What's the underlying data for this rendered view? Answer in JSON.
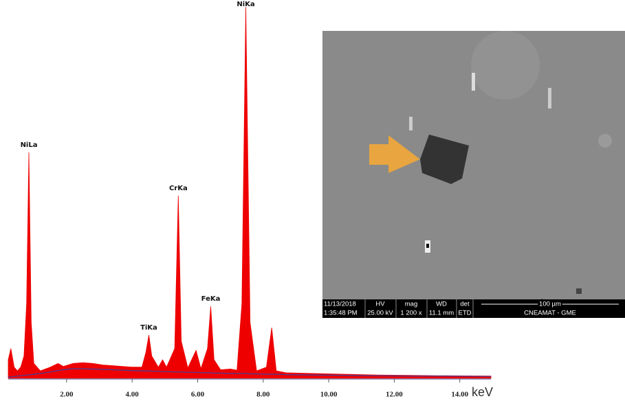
{
  "chart_data": {
    "type": "area",
    "x_unit": "keV",
    "x": [
      0.22,
      0.3,
      0.4,
      0.5,
      0.6,
      0.7,
      0.78,
      0.85,
      0.92,
      1.0,
      1.2,
      1.5,
      1.74,
      1.9,
      2.2,
      2.5,
      2.8,
      3.1,
      3.4,
      3.7,
      4.0,
      4.3,
      4.42,
      4.51,
      4.6,
      4.8,
      4.93,
      5.05,
      5.3,
      5.41,
      5.5,
      5.7,
      5.95,
      6.1,
      6.3,
      6.4,
      6.5,
      6.7,
      7.0,
      7.2,
      7.35,
      7.47,
      7.6,
      7.8,
      8.1,
      8.26,
      8.4,
      8.7,
      9.5,
      10.5,
      11.5,
      12.5,
      13.5,
      14.95
    ],
    "series": [
      {
        "color": "#ee0000",
        "values": [
          5,
          8,
          3,
          2,
          3,
          6,
          20,
          60.6,
          15,
          4,
          2,
          3,
          4,
          3.2,
          4,
          4.2,
          4,
          3.6,
          3.4,
          3.2,
          3,
          3,
          7,
          11.6,
          6,
          3,
          5,
          3,
          8,
          49,
          10,
          2.8,
          7.5,
          2.6,
          8,
          19.3,
          5,
          2.3,
          2.5,
          2.2,
          20,
          99.6,
          15,
          2,
          3,
          13.6,
          2,
          1.5,
          1.3,
          1.1,
          0.9,
          0.8,
          0.7,
          0.6
        ]
      },
      {
        "color": "#4040a0",
        "values": [
          0.3,
          0.4,
          0.5,
          0.6,
          0.7,
          0.8,
          0.9,
          0.95,
          1.0,
          1.1,
          1.3,
          1.7,
          2.1,
          2.3,
          2.6,
          2.6,
          2.5,
          2.4,
          2.3,
          2.2,
          2.1,
          2.0,
          2.0,
          2.0,
          1.9,
          1.9,
          1.8,
          1.8,
          1.7,
          1.7,
          1.7,
          1.6,
          1.6,
          1.5,
          1.5,
          1.5,
          1.4,
          1.4,
          1.3,
          1.3,
          1.3,
          1.3,
          1.2,
          1.2,
          1.1,
          1.1,
          1.1,
          1.0,
          0.9,
          0.8,
          0.7,
          0.6,
          0.6,
          0.5
        ]
      }
    ],
    "annotations": [
      {
        "text": "NiLa",
        "x": 0.85,
        "y": 60.6
      },
      {
        "text": "TiKa",
        "x": 4.51,
        "y": 11.6
      },
      {
        "text": "CrKa",
        "x": 5.41,
        "y": 49
      },
      {
        "text": "FeKa",
        "x": 6.4,
        "y": 19.3
      },
      {
        "text": "NiKa",
        "x": 7.47,
        "y": 99.6
      }
    ],
    "xlim": [
      0.22,
      14.95
    ],
    "ylim": [
      0,
      100
    ],
    "xticks": [
      {
        "value": 2,
        "label": "2.00"
      },
      {
        "value": 4,
        "label": "4.00"
      },
      {
        "value": 6,
        "label": "6.00"
      },
      {
        "value": 8,
        "label": "8.00"
      },
      {
        "value": 10,
        "label": "10.00"
      },
      {
        "value": 12,
        "label": "12.00"
      },
      {
        "value": 14,
        "label": "14.00"
      }
    ]
  },
  "inset": {
    "date": "11/13/2018",
    "time": "1:35:48 PM",
    "hv_label": "HV",
    "hv": "25.00 kV",
    "mag_label": "mag",
    "mag": "1 200 x",
    "wd_label": "WD",
    "wd": "11.1 mm",
    "det_label": "det",
    "det": "ETD",
    "scale": "100 µm",
    "lab": "CNEAMAT - GME"
  }
}
